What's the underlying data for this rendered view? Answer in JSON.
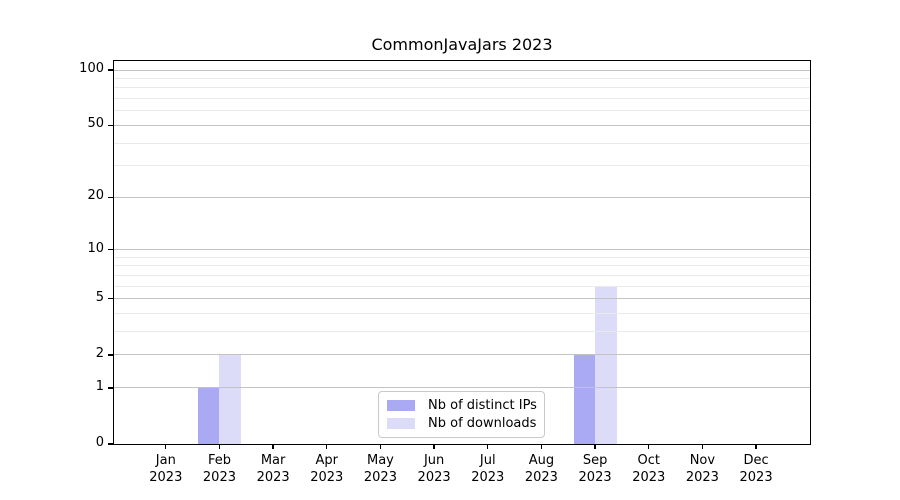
{
  "chart_data": {
    "type": "bar",
    "title": "CommonJavaJars 2023",
    "xlabel": "",
    "ylabel": "",
    "scale": "log1p",
    "ylim": [
      0,
      100
    ],
    "yticks": [
      0,
      1,
      2,
      5,
      10,
      20,
      50,
      100
    ],
    "minor_gridlines": [
      3,
      4,
      6,
      7,
      8,
      9,
      30,
      40,
      60,
      70,
      80,
      90
    ],
    "grid": "horizontal",
    "legend_position": "lower-center-inside",
    "categories": [
      {
        "month": "Jan",
        "year": "2023"
      },
      {
        "month": "Feb",
        "year": "2023"
      },
      {
        "month": "Mar",
        "year": "2023"
      },
      {
        "month": "Apr",
        "year": "2023"
      },
      {
        "month": "May",
        "year": "2023"
      },
      {
        "month": "Jun",
        "year": "2023"
      },
      {
        "month": "Jul",
        "year": "2023"
      },
      {
        "month": "Aug",
        "year": "2023"
      },
      {
        "month": "Sep",
        "year": "2023"
      },
      {
        "month": "Oct",
        "year": "2023"
      },
      {
        "month": "Nov",
        "year": "2023"
      },
      {
        "month": "Dec",
        "year": "2023"
      }
    ],
    "series": [
      {
        "name": "Nb of distinct IPs",
        "color": "#a9a9f4",
        "values": [
          0,
          1,
          0,
          0,
          0,
          0,
          0,
          0,
          2,
          0,
          0,
          0
        ]
      },
      {
        "name": "Nb of downloads",
        "color": "#dcdcf8",
        "values": [
          0,
          2,
          0,
          0,
          0,
          0,
          0,
          0,
          6,
          0,
          0,
          0
        ]
      }
    ],
    "colors": {
      "spine": "#000000",
      "grid_major": "#c3c3c3",
      "grid_minor": "#eaeaea",
      "text": "#000000",
      "background": "#ffffff"
    }
  }
}
